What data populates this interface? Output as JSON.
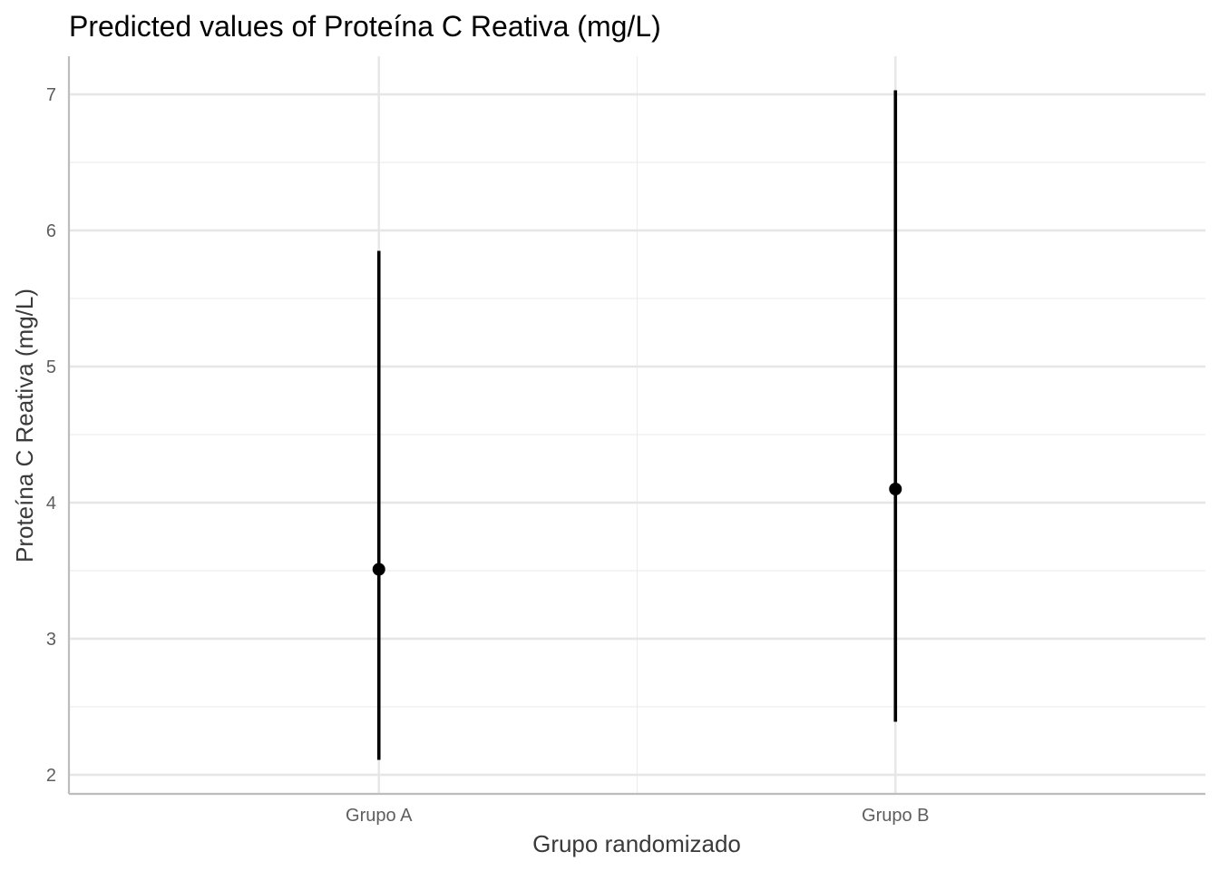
{
  "chart_data": {
    "type": "scatter",
    "title": "Predicted values of Proteína C Reativa (mg/L)",
    "xlabel": "Grupo randomizado",
    "ylabel": "Proteína C Reativa (mg/L)",
    "categories": [
      "Grupo A",
      "Grupo B"
    ],
    "points": [
      {
        "category": "Grupo A",
        "predicted": 3.51,
        "ci_low": 2.11,
        "ci_high": 5.85
      },
      {
        "category": "Grupo B",
        "predicted": 4.1,
        "ci_low": 2.39,
        "ci_high": 7.03
      }
    ],
    "ylim": [
      1.86,
      7.28
    ],
    "y_ticks": [
      2,
      3,
      4,
      5,
      6,
      7
    ],
    "y_tick_labels": [
      "2",
      "3",
      "4",
      "5",
      "6",
      "7"
    ],
    "grid": true,
    "legend": "none",
    "colors": {
      "point": "#000000",
      "errorbar": "#000000",
      "grid_major": "#e6e6e6",
      "grid_minor": "#ededed",
      "axis": "#bdbdbd",
      "background": "#ffffff"
    }
  }
}
